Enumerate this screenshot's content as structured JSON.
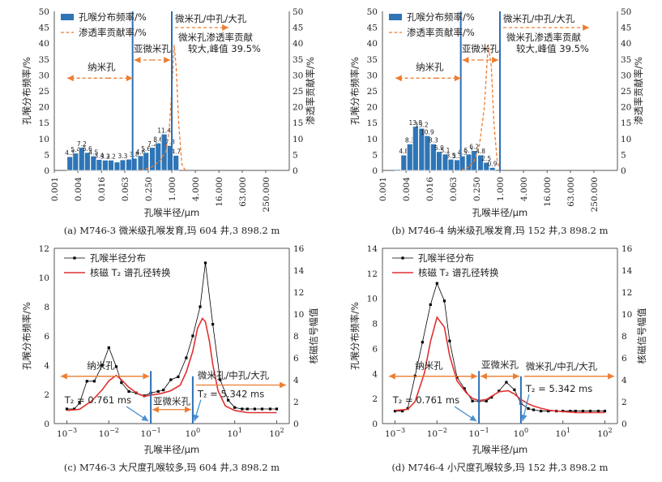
{
  "colors": {
    "bar": "#2e75b6",
    "bar_edge": "#ffffff",
    "dash": "#ed7d31",
    "pore": "#000000",
    "nmr": "#e03030",
    "axis": "#555555",
    "divider": "#2e6fb6",
    "arrow": "#ed7d31",
    "arrow_blue": "#4a8fd0"
  },
  "chart_data": [
    {
      "type": "bar",
      "id": "a",
      "caption": "(a) M746-3 微米级孔喉发育,玛 604 井,3 898.2 m",
      "xlabel": "孔喉半径/μm",
      "ylabel_left": "孔喉分布频率/%",
      "ylabel_right": "渗透率贡献率/%",
      "ylim": [
        0,
        50
      ],
      "yticks": [
        "0",
        "5",
        "10",
        "15",
        "20",
        "25",
        "30",
        "35",
        "40",
        "45",
        "50"
      ],
      "xtick_labels": [
        "0.001",
        "0.004",
        "0.016",
        "0.063",
        "0.250",
        "1.000",
        "4.000",
        "16.000",
        "63.000",
        "250.000"
      ],
      "legend": [
        "孔喉分布频率/%",
        "渗透率贡献率/%"
      ],
      "bars": [
        {
          "r": 0.0025,
          "value": 4.3,
          "label": "4.3"
        },
        {
          "r": 0.0035,
          "value": 5.4,
          "label": "5.4"
        },
        {
          "r": 0.005,
          "value": 7.2,
          "label": "7.2"
        },
        {
          "r": 0.007,
          "value": 5.6,
          "label": "5.6"
        },
        {
          "r": 0.01,
          "value": 4.5,
          "label": "4.5"
        },
        {
          "r": 0.014,
          "value": 3.4,
          "label": "3.4"
        },
        {
          "r": 0.02,
          "value": 3.2,
          "label": "3.2"
        },
        {
          "r": 0.028,
          "value": 3.2,
          "label": "3.2"
        },
        {
          "r": 0.04,
          "value": 2.6,
          "label": ""
        },
        {
          "r": 0.056,
          "value": 3.3,
          "label": "3.3"
        },
        {
          "r": 0.08,
          "value": 3.5,
          "label": ""
        },
        {
          "r": 0.11,
          "value": 3.8,
          "label": "3.8"
        },
        {
          "r": 0.16,
          "value": 4.6,
          "label": "4.6"
        },
        {
          "r": 0.22,
          "value": 5.6,
          "label": "5.6"
        },
        {
          "r": 0.32,
          "value": 7.2,
          "label": "7.2"
        },
        {
          "r": 0.45,
          "value": 8.6,
          "label": "8.6"
        },
        {
          "r": 0.64,
          "value": 11.4,
          "label": "11.4"
        },
        {
          "r": 0.9,
          "value": 7.8,
          "label": "7.8"
        },
        {
          "r": 1.28,
          "value": 4.7,
          "label": "4.7"
        }
      ],
      "permeability": {
        "x": [
          0.16,
          0.3,
          0.5,
          0.7,
          0.85,
          1.0,
          1.15,
          1.3,
          1.5,
          1.8,
          2.2
        ],
        "y": [
          0,
          1,
          3,
          6,
          12,
          25,
          39.5,
          32,
          15,
          2,
          0
        ]
      },
      "dividers": [
        0.1,
        1.0
      ],
      "annotations": {
        "nano": "纳米孔",
        "sub": "亚微米孔",
        "micro": "微米孔/中孔/大孔",
        "note1": "微米孔渗透率贡献",
        "note2": "较大,峰值 39.5%"
      }
    },
    {
      "type": "bar",
      "id": "b",
      "caption": "(b) M746-4 纳米级孔喉发育,玛 152 井,3 898.2 m",
      "xlabel": "孔喉半径/μm",
      "ylabel_left": "孔喉分布频率/%",
      "ylabel_right": "渗透率贡献率/%",
      "ylim": [
        0,
        50
      ],
      "yticks": [
        "0",
        "5",
        "10",
        "15",
        "20",
        "25",
        "30",
        "35",
        "40",
        "45",
        "50"
      ],
      "xtick_labels": [
        "0.001",
        "0.004",
        "0.016",
        "0.063",
        "0.250",
        "1.000",
        "4.000",
        "16.000",
        "63.000",
        "250.000"
      ],
      "legend": [
        "孔喉分布频率/%",
        "渗透率贡献率/%"
      ],
      "bars": [
        {
          "r": 0.0025,
          "value": 0.3,
          "label": ""
        },
        {
          "r": 0.0035,
          "value": 4.8,
          "label": "4.8"
        },
        {
          "r": 0.005,
          "value": 8.3,
          "label": "8.3"
        },
        {
          "r": 0.007,
          "value": 13.8,
          "label": "13.8"
        },
        {
          "r": 0.01,
          "value": 13.2,
          "label": "13.2"
        },
        {
          "r": 0.014,
          "value": 10.9,
          "label": "10.9"
        },
        {
          "r": 0.02,
          "value": 8.3,
          "label": "8.3"
        },
        {
          "r": 0.028,
          "value": 5.9,
          "label": "5.9"
        },
        {
          "r": 0.04,
          "value": 5.1,
          "label": "5.1"
        },
        {
          "r": 0.056,
          "value": 3.5,
          "label": "3.5"
        },
        {
          "r": 0.08,
          "value": 3.3,
          "label": "3.3"
        },
        {
          "r": 0.11,
          "value": 4.5,
          "label": "4.5"
        },
        {
          "r": 0.16,
          "value": 5.1,
          "label": "5.1"
        },
        {
          "r": 0.22,
          "value": 6.2,
          "label": "6.2"
        },
        {
          "r": 0.32,
          "value": 4.8,
          "label": "4.8"
        },
        {
          "r": 0.45,
          "value": 2.5,
          "label": "2.5"
        },
        {
          "r": 0.64,
          "value": 0.9,
          "label": "0.9"
        }
      ],
      "permeability": {
        "x": [
          0.1,
          0.16,
          0.22,
          0.3,
          0.4,
          0.5,
          0.6,
          0.7,
          0.85,
          1.0
        ],
        "y": [
          0,
          1,
          3,
          8,
          20,
          39.5,
          33,
          15,
          3,
          0
        ]
      },
      "dividers": [
        0.1,
        1.0
      ],
      "annotations": {
        "nano": "纳米孔",
        "sub": "亚微米孔",
        "micro": "微米孔/中孔/大孔",
        "note1": "微米孔渗透率贡献",
        "note2": "较大,峰值 39.5%"
      }
    },
    {
      "type": "line",
      "id": "c",
      "caption": "(c) M746-3 大尺度孔喉较多,玛 604 井,3 898.2 m",
      "xlabel": "孔喉半径/μm",
      "ylabel_left": "孔喉分布频率/%",
      "ylabel_right": "核磁信号幅值",
      "ylim_left": [
        0,
        12
      ],
      "ylim_right": [
        0,
        16
      ],
      "yticks_left": [
        "0",
        "2",
        "4",
        "6",
        "8",
        "10",
        "12"
      ],
      "yticks_right": [
        "0",
        "2",
        "4",
        "6",
        "8",
        "10",
        "12",
        "14",
        "16"
      ],
      "xticks": [
        -3,
        -2,
        -1,
        0,
        1,
        2
      ],
      "legend": [
        "孔喉半径分布",
        "核磁 T₂ 谱孔径转换"
      ],
      "pore": {
        "x": [
          0.001,
          0.0015,
          0.002,
          0.003,
          0.0045,
          0.007,
          0.01,
          0.015,
          0.02,
          0.03,
          0.045,
          0.07,
          0.1,
          0.15,
          0.2,
          0.3,
          0.45,
          0.7,
          1.0,
          1.5,
          2.0,
          3.0,
          4.5,
          7.0,
          10,
          15,
          20,
          30,
          45,
          70,
          100
        ],
        "y": [
          1.0,
          1.0,
          1.4,
          2.9,
          2.9,
          4.0,
          5.2,
          3.9,
          2.8,
          2.2,
          2.1,
          1.9,
          2.1,
          2.2,
          2.3,
          3.0,
          3.2,
          4.5,
          6.0,
          8.0,
          11.0,
          6.8,
          3.0,
          1.6,
          1.1,
          1.0,
          1.0,
          1.0,
          1.0,
          1.0,
          1.0
        ]
      },
      "nmr": {
        "x": [
          0.001,
          0.002,
          0.004,
          0.007,
          0.01,
          0.015,
          0.02,
          0.03,
          0.05,
          0.07,
          0.1,
          0.15,
          0.2,
          0.3,
          0.5,
          0.7,
          1.0,
          1.3,
          1.7,
          2.0,
          2.5,
          3.0,
          4.0,
          6.0,
          10,
          20,
          50,
          100
        ],
        "y": [
          1.2,
          1.3,
          2.1,
          3.1,
          3.9,
          4.4,
          4.0,
          3.3,
          2.7,
          2.5,
          2.6,
          2.7,
          2.8,
          3.0,
          3.5,
          4.7,
          6.6,
          8.7,
          9.6,
          9.3,
          7.5,
          5.4,
          3.0,
          1.6,
          1.2,
          1.0,
          1.0,
          1.0
        ]
      },
      "dividers": [
        0.1,
        1.0
      ],
      "annotations": {
        "nano": "纳米孔",
        "sub": "亚微米孔",
        "micro": "微米孔/中孔/大孔",
        "t2a": "T₂ = 0.761 ms",
        "t2b": "T₂ = 5.342 ms"
      }
    },
    {
      "type": "line",
      "id": "d",
      "caption": "(d) M746-4 小尺度孔喉较多,玛 152 井,3 898.2 m",
      "xlabel": "孔喉半径/μm",
      "ylabel_left": "孔喉分布频率/%",
      "ylabel_right": "核磁信号幅值",
      "ylim_left": [
        0,
        14
      ],
      "ylim_right": [
        0,
        16
      ],
      "yticks_left": [
        "0",
        "2",
        "4",
        "6",
        "8",
        "10",
        "12",
        "14"
      ],
      "yticks_right": [
        "0",
        "2",
        "4",
        "6",
        "8",
        "10",
        "12",
        "14",
        "16"
      ],
      "xticks": [
        -3,
        -2,
        -1,
        0,
        1,
        2
      ],
      "legend": [
        "孔喉半径分布",
        "核磁 T₂ 谱孔径转换"
      ],
      "pore": {
        "x": [
          0.001,
          0.0015,
          0.002,
          0.003,
          0.0045,
          0.007,
          0.01,
          0.015,
          0.02,
          0.03,
          0.045,
          0.07,
          0.1,
          0.15,
          0.2,
          0.3,
          0.45,
          0.7,
          1.0,
          1.5,
          2.0,
          3.0,
          4.5,
          7.0,
          10,
          15,
          20,
          30,
          45,
          70,
          100
        ],
        "y": [
          1.0,
          1.0,
          1.2,
          3.8,
          6.5,
          9.5,
          11.2,
          9.8,
          6.6,
          3.7,
          2.8,
          1.8,
          1.8,
          1.8,
          2.1,
          2.6,
          3.3,
          2.7,
          1.6,
          1.2,
          1.1,
          1.0,
          1.0,
          1.0,
          1.0,
          1.0,
          1.0,
          1.0,
          1.0,
          1.0,
          1.0
        ]
      },
      "nmr": {
        "x": [
          0.001,
          0.002,
          0.003,
          0.005,
          0.007,
          0.01,
          0.015,
          0.02,
          0.03,
          0.05,
          0.07,
          0.1,
          0.15,
          0.2,
          0.3,
          0.5,
          0.7,
          1.0,
          1.5,
          2.0,
          3.0,
          5.0,
          10,
          20,
          50,
          100
        ],
        "y": [
          1.2,
          1.3,
          2.0,
          4.6,
          7.5,
          9.7,
          8.8,
          6.2,
          3.9,
          2.8,
          2.3,
          2.1,
          2.2,
          2.5,
          2.9,
          3.0,
          2.7,
          2.2,
          1.8,
          1.6,
          1.4,
          1.2,
          1.1,
          1.0,
          1.0,
          1.0
        ]
      },
      "dividers": [
        0.1,
        1.0
      ],
      "annotations": {
        "nano": "纳米孔",
        "sub": "亚微米孔",
        "micro": "微米孔/中孔/大孔",
        "t2a": "T₂ = 0.761 ms",
        "t2b": "T₂ = 5.342 ms"
      }
    }
  ]
}
